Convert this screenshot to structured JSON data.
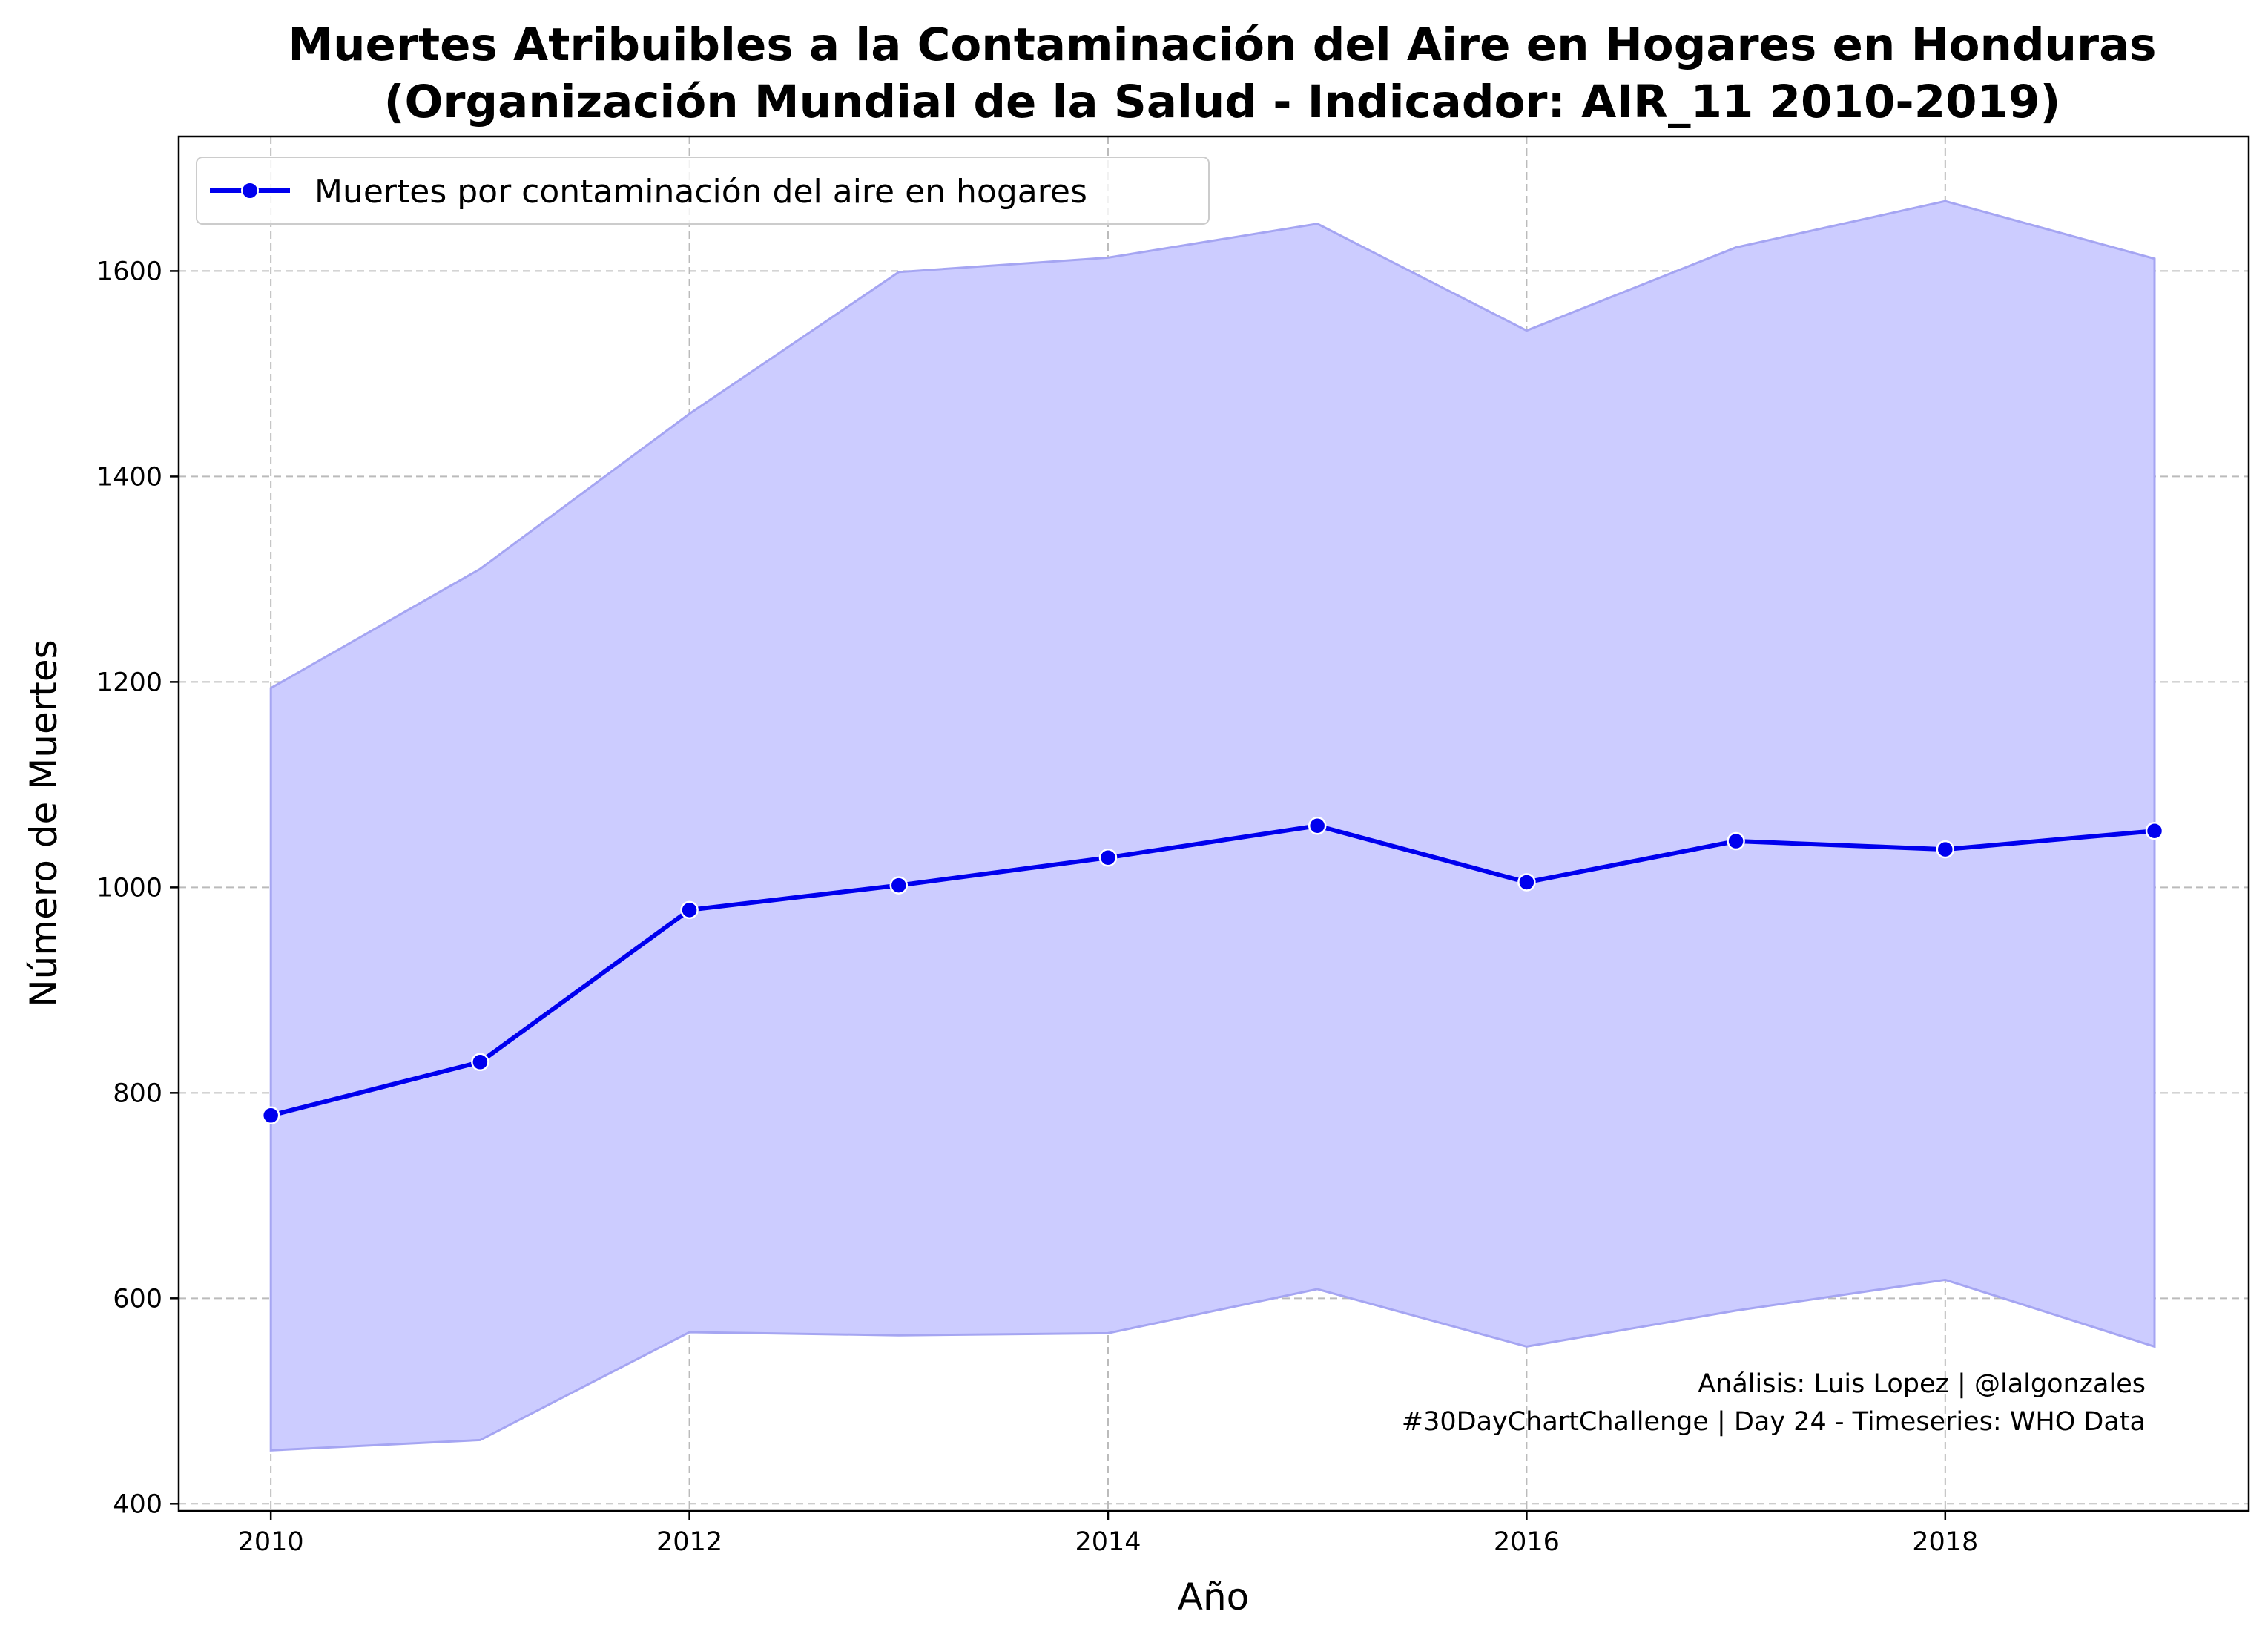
{
  "chart_data": {
    "type": "line",
    "title_line1": "Muertes Atribuibles a la Contaminación del Aire en Hogares en Honduras",
    "title_line2": "(Organización Mundial de la Salud - Indicador: AIR_11 2010-2019)",
    "xlabel": "Año",
    "ylabel": "Número de Muertes",
    "x": [
      2010,
      2011,
      2012,
      2013,
      2014,
      2015,
      2016,
      2017,
      2018,
      2019
    ],
    "series": [
      {
        "name": "Muertes por contaminación del aire en hogares",
        "color": "#0000ee",
        "values": [
          778,
          830,
          978,
          1002,
          1029,
          1060,
          1005,
          1045,
          1037,
          1055
        ]
      }
    ],
    "band": {
      "color": "#ccccff",
      "edge_color": "#a5a5f2",
      "lower": [
        452,
        462,
        567,
        564,
        566,
        609,
        553,
        588,
        618,
        553
      ],
      "upper": [
        1194,
        1310,
        1461,
        1599,
        1613,
        1646,
        1542,
        1623,
        1668,
        1612
      ]
    },
    "xlim": [
      2009.56,
      2019.45
    ],
    "ylim": [
      393,
      1731
    ],
    "xticks": [
      "2010",
      "2012",
      "2014",
      "2016",
      "2018"
    ],
    "xtick_values": [
      2010,
      2012,
      2014,
      2016,
      2018
    ],
    "yticks": [
      "400",
      "600",
      "800",
      "1000",
      "1200",
      "1400",
      "1600"
    ],
    "ytick_values": [
      400,
      600,
      800,
      1000,
      1200,
      1400,
      1600
    ],
    "grid": true,
    "legend_position": "top-left",
    "annotation_line1": "Análisis: Luis Lopez | @lalgonzales",
    "annotation_line2": "#30DayChartChallenge | Day 24 - Timeseries: WHO Data"
  }
}
